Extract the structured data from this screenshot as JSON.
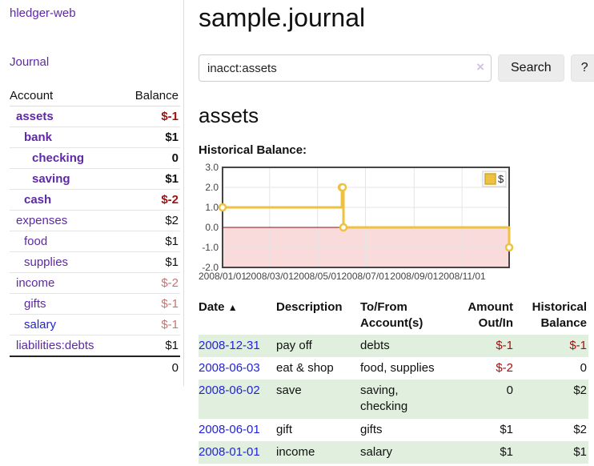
{
  "app": {
    "title": "hledger-web",
    "nav_journal": "Journal"
  },
  "sidebar": {
    "accounts_header": {
      "account": "Account",
      "balance": "Balance"
    },
    "accounts": [
      {
        "name": "assets",
        "balance": "$-1",
        "depth": 1,
        "bold": true,
        "neg": "strong"
      },
      {
        "name": "bank",
        "balance": "$1",
        "depth": 2,
        "bold": true,
        "neg": "none"
      },
      {
        "name": "checking",
        "balance": "0",
        "depth": 3,
        "bold": true,
        "neg": "none"
      },
      {
        "name": "saving",
        "balance": "$1",
        "depth": 3,
        "bold": true,
        "neg": "none"
      },
      {
        "name": "cash",
        "balance": "$-2",
        "depth": 2,
        "bold": true,
        "neg": "strong"
      },
      {
        "name": "expenses",
        "balance": "$2",
        "depth": 1,
        "bold": false,
        "neg": "none"
      },
      {
        "name": "food",
        "balance": "$1",
        "depth": 2,
        "bold": false,
        "neg": "none"
      },
      {
        "name": "supplies",
        "balance": "$1",
        "depth": 2,
        "bold": false,
        "neg": "none"
      },
      {
        "name": "income",
        "balance": "$-2",
        "depth": 1,
        "bold": false,
        "neg": "soft"
      },
      {
        "name": "gifts",
        "balance": "$-1",
        "depth": 2,
        "bold": false,
        "neg": "soft"
      },
      {
        "name": "salary",
        "balance": "$-1",
        "depth": 2,
        "bold": false,
        "neg": "soft",
        "link": "blue"
      },
      {
        "name": "liabilities:debts",
        "balance": "$1",
        "depth": 1,
        "bold": false,
        "neg": "none"
      }
    ],
    "total": "0"
  },
  "header": {
    "title": "sample.journal"
  },
  "search": {
    "value": "inacct:assets",
    "clear_icon": "×",
    "button": "Search",
    "help_button": "?"
  },
  "account_page": {
    "title": "assets",
    "chart_label": "Historical Balance:"
  },
  "chart_data": {
    "type": "line",
    "step": true,
    "title": "Historical Balance:",
    "series": [
      {
        "name": "$",
        "color": "#edc240",
        "points": [
          [
            "2008-01-01",
            1
          ],
          [
            "2008-06-01",
            2
          ],
          [
            "2008-06-02",
            2
          ],
          [
            "2008-06-03",
            0
          ],
          [
            "2008-12-31",
            -1
          ]
        ]
      }
    ],
    "xlim": [
      "2008-01-01",
      "2008-12-31"
    ],
    "ylim": [
      -2,
      3
    ],
    "ytick_labels": [
      "3.0",
      "2.0",
      "1.0",
      "0.0",
      "-1.0",
      "-2.0"
    ],
    "yticks": [
      3,
      2,
      1,
      0,
      -1,
      -2
    ],
    "xticks": [
      "2008-01-01",
      "2008-03-01",
      "2008-05-01",
      "2008-07-01",
      "2008-09-01",
      "2008-11-01"
    ],
    "xtick_labels": [
      "2008/01/01",
      "2008/03/01",
      "2008/05/01",
      "2008/07/01",
      "2008/09/01",
      "2008/11/01"
    ],
    "grid": true,
    "legend_position": "top-right",
    "legend_label": "$",
    "colors": {
      "line": "#edc240",
      "marker_fill": "#ffffff",
      "negative_region": "#f9dbdb",
      "zero_line": "#8b1010",
      "grid": "#e5e5e5",
      "frame": "#454545",
      "tick_text": "#444444"
    }
  },
  "register": {
    "sort_indicator": "▲",
    "columns": [
      {
        "label": "Date",
        "align": "left"
      },
      {
        "label": "Description",
        "align": "left"
      },
      {
        "label": "To/From Account(s)",
        "align": "left"
      },
      {
        "label": "Amount Out/In",
        "align": "right"
      },
      {
        "label": "Historical Balance",
        "align": "right"
      }
    ],
    "rows": [
      {
        "date": "2008-12-31",
        "description": "pay off",
        "accounts": "debts",
        "amount": "$-1",
        "balance": "$-1",
        "amount_neg": true,
        "balance_neg": true
      },
      {
        "date": "2008-06-03",
        "description": "eat & shop",
        "accounts": "food, supplies",
        "amount": "$-2",
        "balance": "0",
        "amount_neg": true,
        "balance_neg": false
      },
      {
        "date": "2008-06-02",
        "description": "save",
        "accounts": "saving, checking",
        "amount": "0",
        "balance": "$2",
        "amount_neg": false,
        "balance_neg": false
      },
      {
        "date": "2008-06-01",
        "description": "gift",
        "accounts": "gifts",
        "amount": "$1",
        "balance": "$2",
        "amount_neg": false,
        "balance_neg": false
      },
      {
        "date": "2008-01-01",
        "description": "income",
        "accounts": "salary",
        "amount": "$1",
        "balance": "$1",
        "amount_neg": false,
        "balance_neg": false
      }
    ]
  }
}
